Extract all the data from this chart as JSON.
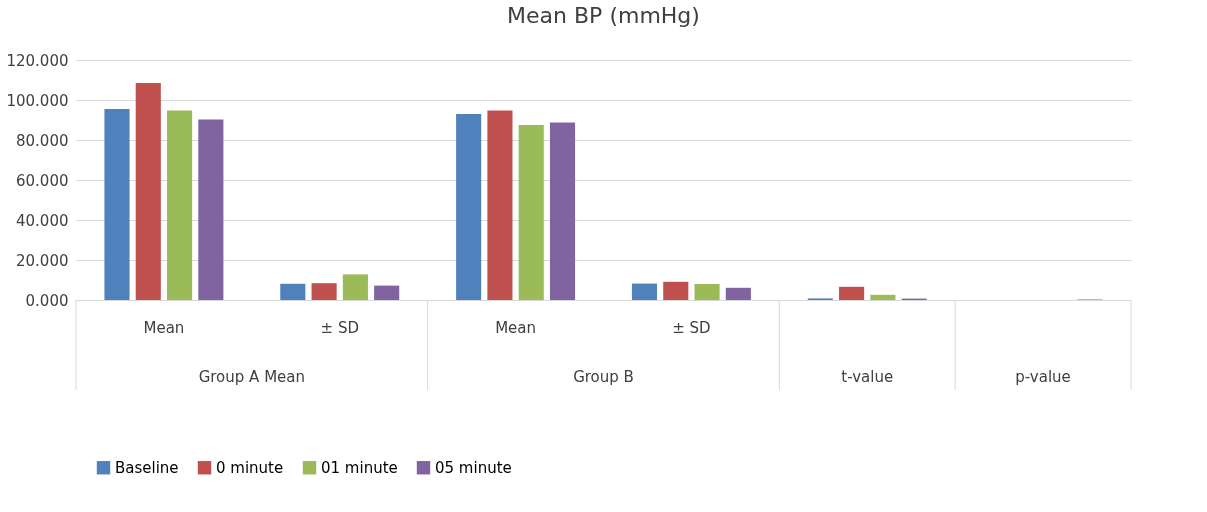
{
  "chart_data": {
    "type": "bar",
    "title": "Mean BP (mmHg)",
    "categories": [
      "Mean",
      "± SD",
      "Mean",
      "± SD",
      null,
      null
    ],
    "annotations": [
      "Group A Mean",
      "Group B",
      "t-value",
      "p-value"
    ],
    "series": [
      {
        "name": "Baseline",
        "color": "#4f81bd",
        "values": [
          95.5,
          8.1,
          93.0,
          8.2,
          0.8,
          null
        ]
      },
      {
        "name": "0 minute",
        "color": "#c0504d",
        "values": [
          108.5,
          8.4,
          94.7,
          9.1,
          6.6,
          null
        ]
      },
      {
        "name": "01 minute",
        "color": "#9bbb59",
        "values": [
          94.8,
          12.8,
          87.5,
          8.0,
          2.6,
          null
        ]
      },
      {
        "name": "05 minute",
        "color": "#8064a2",
        "values": [
          90.2,
          7.2,
          88.8,
          6.1,
          0.7,
          0.3
        ]
      }
    ],
    "ylim": [
      0,
      120
    ],
    "yticks": [
      {
        "value": 0,
        "label": "0.000"
      },
      {
        "value": 20,
        "label": "20.000"
      },
      {
        "value": 40,
        "label": "40.000"
      },
      {
        "value": 60,
        "label": "60.000"
      },
      {
        "value": 80,
        "label": "80.000"
      },
      {
        "value": 100,
        "label": "100.000"
      },
      {
        "value": 120,
        "label": "120.000"
      }
    ],
    "grid": "y",
    "legend": "bottom"
  }
}
